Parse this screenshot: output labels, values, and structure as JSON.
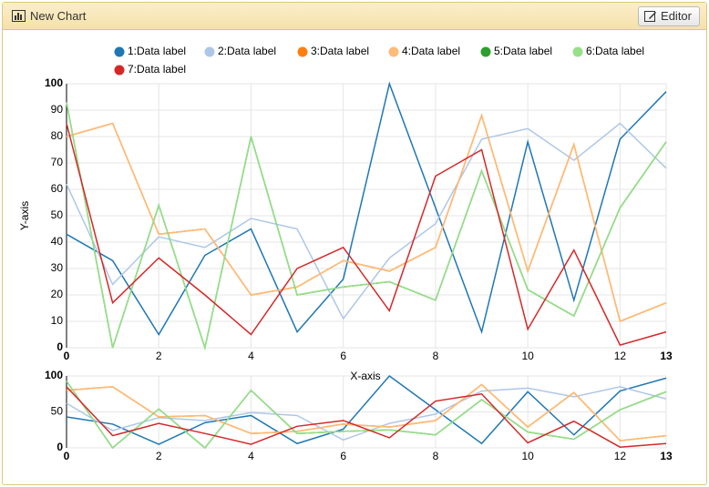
{
  "header": {
    "title": "New Chart",
    "button": "Editor"
  },
  "chart_data": {
    "type": "line",
    "x": [
      0,
      1,
      2,
      3,
      4,
      5,
      6,
      7,
      8,
      9,
      10,
      11,
      12,
      13
    ],
    "series": [
      {
        "name": "1:Data label",
        "color": "#1f77b4",
        "values": [
          43,
          33,
          5,
          35,
          45,
          6,
          26,
          100,
          53,
          6,
          78,
          18,
          79,
          97
        ]
      },
      {
        "name": "2:Data label",
        "color": "#aec7e8",
        "values": [
          62,
          24,
          42,
          38,
          49,
          45,
          11,
          34,
          47,
          79,
          83,
          71,
          85,
          68
        ]
      },
      {
        "name": "3:Data label",
        "color": "#ff7f0e",
        "values": [
          80,
          85,
          43,
          45,
          20,
          23,
          33,
          29,
          38,
          88,
          29,
          77,
          10,
          17
        ]
      },
      {
        "name": "4:Data label",
        "color": "#ffbb78",
        "values": [
          80,
          85,
          43,
          45,
          20,
          23,
          33,
          29,
          38,
          88,
          29,
          77,
          10,
          17
        ]
      },
      {
        "name": "5:Data label",
        "color": "#2ca02c",
        "values": [
          93,
          0,
          54,
          0,
          80,
          20,
          23,
          25,
          18,
          67,
          22,
          12,
          53,
          78
        ]
      },
      {
        "name": "6:Data label",
        "color": "#98df8a",
        "values": [
          93,
          0,
          54,
          0,
          80,
          20,
          23,
          25,
          18,
          67,
          22,
          12,
          53,
          78
        ]
      },
      {
        "name": "7:Data label",
        "color": "#d62728",
        "values": [
          85,
          17,
          34,
          20,
          5,
          30,
          38,
          14,
          65,
          75,
          7,
          37,
          1,
          6
        ]
      }
    ],
    "x_label": "X-axis",
    "y_label": "Y-axis",
    "xlim": [
      0,
      13
    ],
    "xticks": [
      0,
      2,
      4,
      6,
      8,
      10,
      12,
      13
    ],
    "ylim": [
      0,
      100
    ],
    "yticks": [
      0,
      10,
      20,
      30,
      40,
      50,
      60,
      70,
      80,
      90,
      100
    ],
    "y2ticks": [
      0,
      50,
      100
    ],
    "grid": true
  }
}
